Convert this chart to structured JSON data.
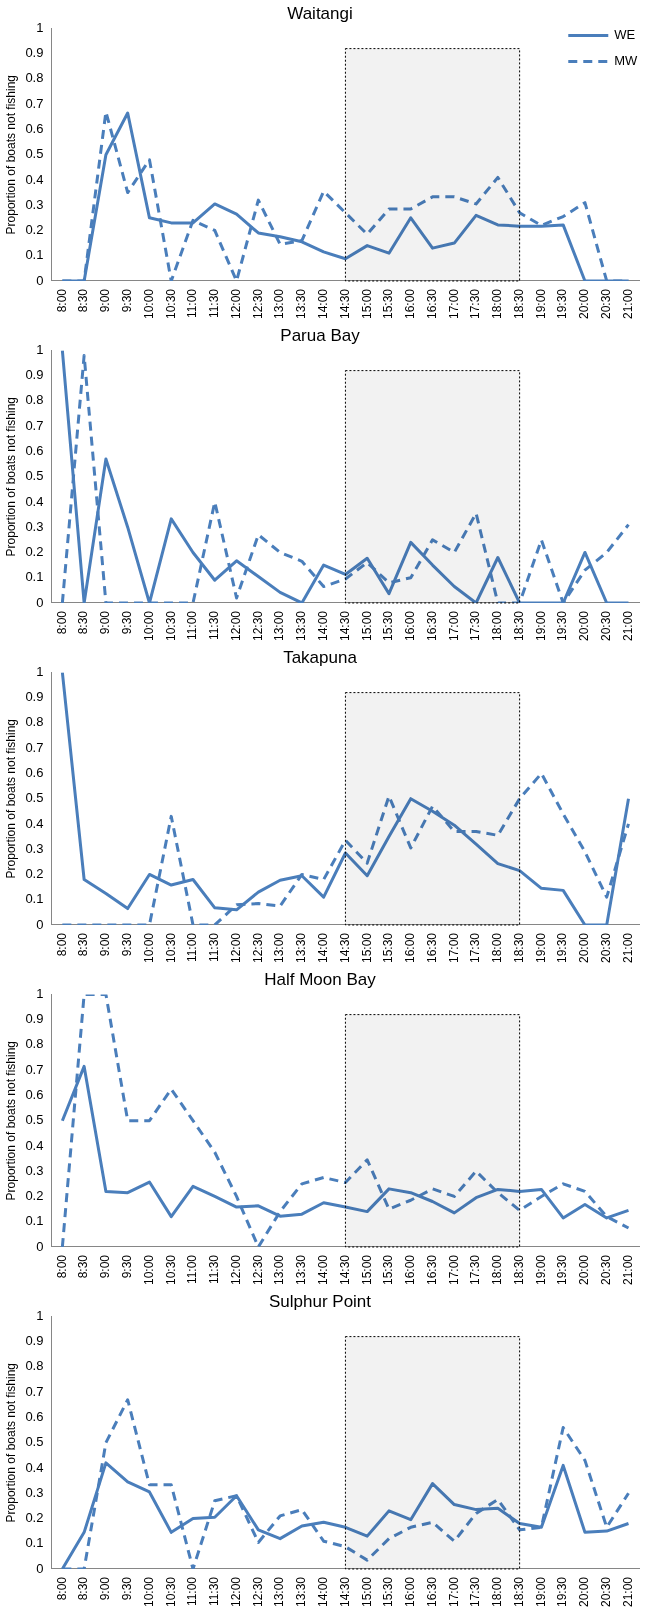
{
  "chart_data": [
    {
      "type": "line",
      "title": "Waitangi",
      "ylabel": "Proportion of boats not fishing",
      "categories": [
        "8:00",
        "8:30",
        "9:00",
        "9:30",
        "10:00",
        "10:30",
        "11:00",
        "11:30",
        "12:00",
        "12:30",
        "13:00",
        "13:30",
        "14:00",
        "14:30",
        "15:00",
        "15:30",
        "16:00",
        "16:30",
        "17:00",
        "17:30",
        "18:00",
        "18:30",
        "19:00",
        "19:30",
        "20:00",
        "20:30",
        "21:00"
      ],
      "ylim": [
        0,
        1
      ],
      "yticks": [
        0,
        0.1,
        0.2,
        0.3,
        0.4,
        0.5,
        0.6,
        0.7,
        0.8,
        0.9,
        1
      ],
      "grid": false,
      "legend": "top right",
      "marker": "none",
      "bands": [
        {
          "axis": "x",
          "from": "14:30",
          "to": "18:30",
          "color": "#000000"
        }
      ],
      "series": [
        {
          "name": "WE",
          "color": "#4a7ebb",
          "line_style": "solid",
          "values": [
            0,
            0,
            0.5,
            0.665,
            0.25,
            0.23,
            0.23,
            0.305,
            0.265,
            0.19,
            0.175,
            0.155,
            0.115,
            0.088,
            0.14,
            0.11,
            0.25,
            0.13,
            0.15,
            0.26,
            0.222,
            0.217,
            0.217,
            0.222,
            0,
            0,
            0
          ]
        },
        {
          "name": "MW",
          "color": "#4a7ebb",
          "line_style": "dashed",
          "values": [
            0,
            0,
            0.67,
            0.35,
            0.48,
            0,
            0.24,
            0.2,
            0,
            0.32,
            0.145,
            0.16,
            0.355,
            0.27,
            0.185,
            0.285,
            0.285,
            0.333,
            0.333,
            0.305,
            0.41,
            0.27,
            0.22,
            0.255,
            0.31,
            0,
            0
          ]
        }
      ]
    },
    {
      "type": "line",
      "title": "Parua Bay",
      "ylabel": "Proportion of boats not fishing",
      "categories": [
        "8:00",
        "8:30",
        "9:00",
        "9:30",
        "10:00",
        "10:30",
        "11:00",
        "11:30",
        "12:00",
        "12:30",
        "13:00",
        "13:30",
        "14:00",
        "14:30",
        "15:00",
        "15:30",
        "16:00",
        "16:30",
        "17:00",
        "17:30",
        "18:00",
        "18:30",
        "19:00",
        "19:30",
        "20:00",
        "20:30",
        "21:00"
      ],
      "ylim": [
        0,
        1
      ],
      "yticks": [
        0,
        0.1,
        0.2,
        0.3,
        0.4,
        0.5,
        0.6,
        0.7,
        0.8,
        0.9,
        1
      ],
      "grid": false,
      "marker": "none",
      "bands": [
        {
          "axis": "x",
          "from": "14:30",
          "to": "18:30",
          "color": "#000000"
        }
      ],
      "series": [
        {
          "color": "#4a7ebb",
          "line_style": "solid",
          "values": [
            1,
            0,
            0.57,
            0.3,
            0,
            0.333,
            0.2,
            0.09,
            0.167,
            0.105,
            0.042,
            0,
            0.15,
            0.113,
            0.177,
            0.037,
            0.24,
            0.15,
            0.065,
            0,
            0.18,
            0,
            0,
            0,
            0.2,
            0,
            0
          ]
        },
        {
          "color": "#4a7ebb",
          "line_style": "dashed",
          "values": [
            0,
            0.98,
            0,
            0,
            0,
            0,
            0,
            0.4,
            0.02,
            0.27,
            0.2,
            0.165,
            0.065,
            0.095,
            0.16,
            0.08,
            0.1,
            0.25,
            0.2,
            0.355,
            0,
            0,
            0.25,
            0,
            0.13,
            0.2,
            0.31
          ]
        }
      ]
    },
    {
      "type": "line",
      "title": "Takapuna",
      "ylabel": "Proportion of boats not fishing",
      "categories": [
        "8:00",
        "8:30",
        "9:00",
        "9:30",
        "10:00",
        "10:30",
        "11:00",
        "11:30",
        "12:00",
        "12:30",
        "13:00",
        "13:30",
        "14:00",
        "14:30",
        "15:00",
        "15:30",
        "16:00",
        "16:30",
        "17:00",
        "17:30",
        "18:00",
        "18:30",
        "19:00",
        "19:30",
        "20:00",
        "20:30",
        "21:00"
      ],
      "ylim": [
        0,
        1
      ],
      "yticks": [
        0,
        0.1,
        0.2,
        0.3,
        0.4,
        0.5,
        0.6,
        0.7,
        0.8,
        0.9,
        1
      ],
      "grid": false,
      "marker": "none",
      "bands": [
        {
          "axis": "x",
          "from": "14:30",
          "to": "18:30",
          "color": "#000000"
        }
      ],
      "series": [
        {
          "color": "#4a7ebb",
          "line_style": "solid",
          "values": [
            1,
            0.18,
            0.125,
            0.065,
            0.2,
            0.158,
            0.18,
            0.068,
            0.06,
            0.13,
            0.177,
            0.195,
            0.11,
            0.285,
            0.195,
            0.35,
            0.5,
            0.45,
            0.395,
            0.32,
            0.243,
            0.215,
            0.145,
            0.137,
            0,
            0,
            0.5
          ]
        },
        {
          "color": "#4a7ebb",
          "line_style": "dashed",
          "values": [
            0,
            0,
            0,
            0,
            0,
            0.43,
            0,
            0,
            0.08,
            0.085,
            0.075,
            0.2,
            0.18,
            0.335,
            0.245,
            0.51,
            0.305,
            0.47,
            0.37,
            0.37,
            0.355,
            0.5,
            0.6,
            0.44,
            0.29,
            0.11,
            0.4
          ]
        }
      ]
    },
    {
      "type": "line",
      "title": "Half Moon Bay",
      "ylabel": "Proportion of boats not fishing",
      "categories": [
        "8:00",
        "8:30",
        "9:00",
        "9:30",
        "10:00",
        "10:30",
        "11:00",
        "11:30",
        "12:00",
        "12:30",
        "13:00",
        "13:30",
        "14:00",
        "14:30",
        "15:00",
        "15:30",
        "16:00",
        "16:30",
        "17:00",
        "17:30",
        "18:00",
        "18:30",
        "19:00",
        "19:30",
        "20:00",
        "20:30",
        "21:00"
      ],
      "ylim": [
        0,
        1
      ],
      "yticks": [
        0,
        0.1,
        0.2,
        0.3,
        0.4,
        0.5,
        0.6,
        0.7,
        0.8,
        0.9,
        1
      ],
      "grid": false,
      "marker": "none",
      "bands": [
        {
          "axis": "x",
          "from": "14:30",
          "to": "18:30",
          "color": "#000000"
        }
      ],
      "series": [
        {
          "color": "#4a7ebb",
          "line_style": "solid",
          "values": [
            0.5,
            0.715,
            0.22,
            0.215,
            0.257,
            0.12,
            0.24,
            0.2,
            0.158,
            0.163,
            0.122,
            0.13,
            0.175,
            0.158,
            0.14,
            0.23,
            0.215,
            0.18,
            0.135,
            0.195,
            0.228,
            0.22,
            0.228,
            0.115,
            0.168,
            0.115,
            0.145
          ]
        },
        {
          "color": "#4a7ebb",
          "line_style": "dashed",
          "values": [
            0,
            1,
            1,
            0.5,
            0.5,
            0.625,
            0.5,
            0.375,
            0.2,
            0,
            0.14,
            0.25,
            0.275,
            0.255,
            0.345,
            0.15,
            0.185,
            0.23,
            0.2,
            0.3,
            0.215,
            0.145,
            0.2,
            0.25,
            0.22,
            0.12,
            0.075
          ]
        }
      ]
    },
    {
      "type": "line",
      "title": "Sulphur Point",
      "ylabel": "Proportion of boats not fishing",
      "categories": [
        "8:00",
        "8:30",
        "9:00",
        "9:30",
        "10:00",
        "10:30",
        "11:00",
        "11:30",
        "12:00",
        "12:30",
        "13:00",
        "13:30",
        "14:00",
        "14:30",
        "15:00",
        "15:30",
        "16:00",
        "16:30",
        "17:00",
        "17:30",
        "18:00",
        "18:30",
        "19:00",
        "19:30",
        "20:00",
        "20:30",
        "21:00"
      ],
      "ylim": [
        0,
        1
      ],
      "yticks": [
        0,
        0.1,
        0.2,
        0.3,
        0.4,
        0.5,
        0.6,
        0.7,
        0.8,
        0.9,
        1
      ],
      "grid": false,
      "marker": "none",
      "bands": [
        {
          "axis": "x",
          "from": "14:30",
          "to": "18:30",
          "color": "#000000"
        }
      ],
      "series": [
        {
          "color": "#4a7ebb",
          "line_style": "solid",
          "values": [
            0,
            0.145,
            0.42,
            0.345,
            0.305,
            0.145,
            0.2,
            0.205,
            0.29,
            0.155,
            0.12,
            0.17,
            0.185,
            0.165,
            0.13,
            0.23,
            0.195,
            0.338,
            0.255,
            0.235,
            0.24,
            0.18,
            0.165,
            0.41,
            0.145,
            0.15,
            0.18
          ]
        },
        {
          "color": "#4a7ebb",
          "line_style": "dashed",
          "values": [
            0,
            0,
            0.5,
            0.67,
            0.333,
            0.333,
            0,
            0.27,
            0.29,
            0.105,
            0.21,
            0.235,
            0.11,
            0.088,
            0.035,
            0.12,
            0.165,
            0.185,
            0.11,
            0.22,
            0.275,
            0.155,
            0.165,
            0.56,
            0.43,
            0.165,
            0.3
          ]
        }
      ]
    }
  ]
}
